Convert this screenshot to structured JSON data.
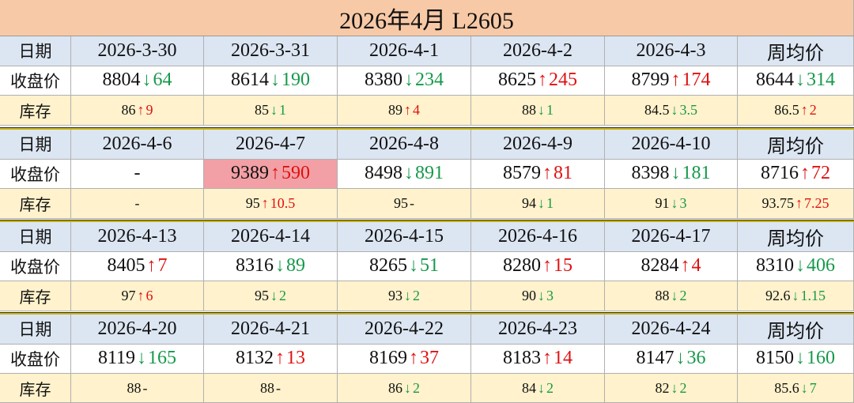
{
  "title": "2026年4月  L2605",
  "row_labels": [
    "日期",
    "收盘价",
    "库存"
  ],
  "blocks": [
    {
      "dates": [
        "2026-3-30",
        "2026-3-31",
        "2026-4-1",
        "2026-4-2",
        "2026-4-3",
        "周均价"
      ],
      "prices": [
        {
          "value": "8804",
          "arrow": "↓",
          "change": "64"
        },
        {
          "value": "8614",
          "arrow": "↓",
          "change": "190"
        },
        {
          "value": "8380",
          "arrow": "↓",
          "change": "234"
        },
        {
          "value": "8625",
          "arrow": "↑",
          "change": "245"
        },
        {
          "value": "8799",
          "arrow": "↑",
          "change": "174"
        },
        {
          "value": "8644",
          "arrow": "↓",
          "change": "314"
        }
      ],
      "stocks": [
        {
          "value": "86",
          "arrow": "↑",
          "change": "9"
        },
        {
          "value": "85",
          "arrow": "↓",
          "change": "1"
        },
        {
          "value": "89",
          "arrow": "↑",
          "change": "4"
        },
        {
          "value": "88",
          "arrow": "↓",
          "change": "1"
        },
        {
          "value": "84.5",
          "arrow": "↓",
          "change": "3.5"
        },
        {
          "value": "86.5",
          "arrow": "↑",
          "change": "2"
        }
      ]
    },
    {
      "dates": [
        "2026-4-6",
        "2026-4-7",
        "2026-4-8",
        "2026-4-9",
        "2026-4-10",
        "周均价"
      ],
      "prices": [
        {
          "value": "-"
        },
        {
          "value": "9389",
          "arrow": "↑",
          "change": "590",
          "highlight": true
        },
        {
          "value": "8498",
          "arrow": "↓",
          "change": "891"
        },
        {
          "value": "8579",
          "arrow": "↑",
          "change": "81"
        },
        {
          "value": "8398",
          "arrow": "↓",
          "change": "181"
        },
        {
          "value": "8716",
          "arrow": "↑",
          "change": "72"
        }
      ],
      "stocks": [
        {
          "value": "-"
        },
        {
          "value": "95",
          "arrow": "↑",
          "change": "10.5"
        },
        {
          "value": "95",
          "change": "-"
        },
        {
          "value": "94",
          "arrow": "↓",
          "change": "1"
        },
        {
          "value": "91",
          "arrow": "↓",
          "change": "3"
        },
        {
          "value": "93.75",
          "arrow": "↑",
          "change": "7.25"
        }
      ]
    },
    {
      "dates": [
        "2026-4-13",
        "2026-4-14",
        "2026-4-15",
        "2026-4-16",
        "2026-4-17",
        "周均价"
      ],
      "prices": [
        {
          "value": "8405",
          "arrow": "↑",
          "change": "7"
        },
        {
          "value": "8316",
          "arrow": "↓",
          "change": "89"
        },
        {
          "value": "8265",
          "arrow": "↓",
          "change": "51"
        },
        {
          "value": "8280",
          "arrow": "↑",
          "change": "15"
        },
        {
          "value": "8284",
          "arrow": "↑",
          "change": "4"
        },
        {
          "value": "8310",
          "arrow": "↓",
          "change": "406"
        }
      ],
      "stocks": [
        {
          "value": "97",
          "arrow": "↑",
          "change": "6"
        },
        {
          "value": "95",
          "arrow": "↓",
          "change": "2"
        },
        {
          "value": "93",
          "arrow": "↓",
          "change": "2"
        },
        {
          "value": "90",
          "arrow": "↓",
          "change": "3"
        },
        {
          "value": "88",
          "arrow": "↓",
          "change": "2"
        },
        {
          "value": "92.6",
          "arrow": "↓",
          "change": "1.15"
        }
      ]
    },
    {
      "dates": [
        "2026-4-20",
        "2026-4-21",
        "2026-4-22",
        "2026-4-23",
        "2026-4-24",
        "周均价"
      ],
      "prices": [
        {
          "value": "8119",
          "arrow": "↓",
          "change": "165"
        },
        {
          "value": "8132",
          "arrow": "↑",
          "change": "13"
        },
        {
          "value": "8169",
          "arrow": "↑",
          "change": "37"
        },
        {
          "value": "8183",
          "arrow": "↑",
          "change": "14"
        },
        {
          "value": "8147",
          "arrow": "↓",
          "change": "36"
        },
        {
          "value": "8150",
          "arrow": "↓",
          "change": "160"
        }
      ],
      "stocks": [
        {
          "value": "88",
          "change": "-"
        },
        {
          "value": "88",
          "change": "-"
        },
        {
          "value": "86",
          "arrow": "↓",
          "change": "2"
        },
        {
          "value": "84",
          "arrow": "↓",
          "change": "2"
        },
        {
          "value": "82",
          "arrow": "↓",
          "change": "2"
        },
        {
          "value": "85.6",
          "arrow": "↓",
          "change": "7"
        }
      ]
    }
  ]
}
